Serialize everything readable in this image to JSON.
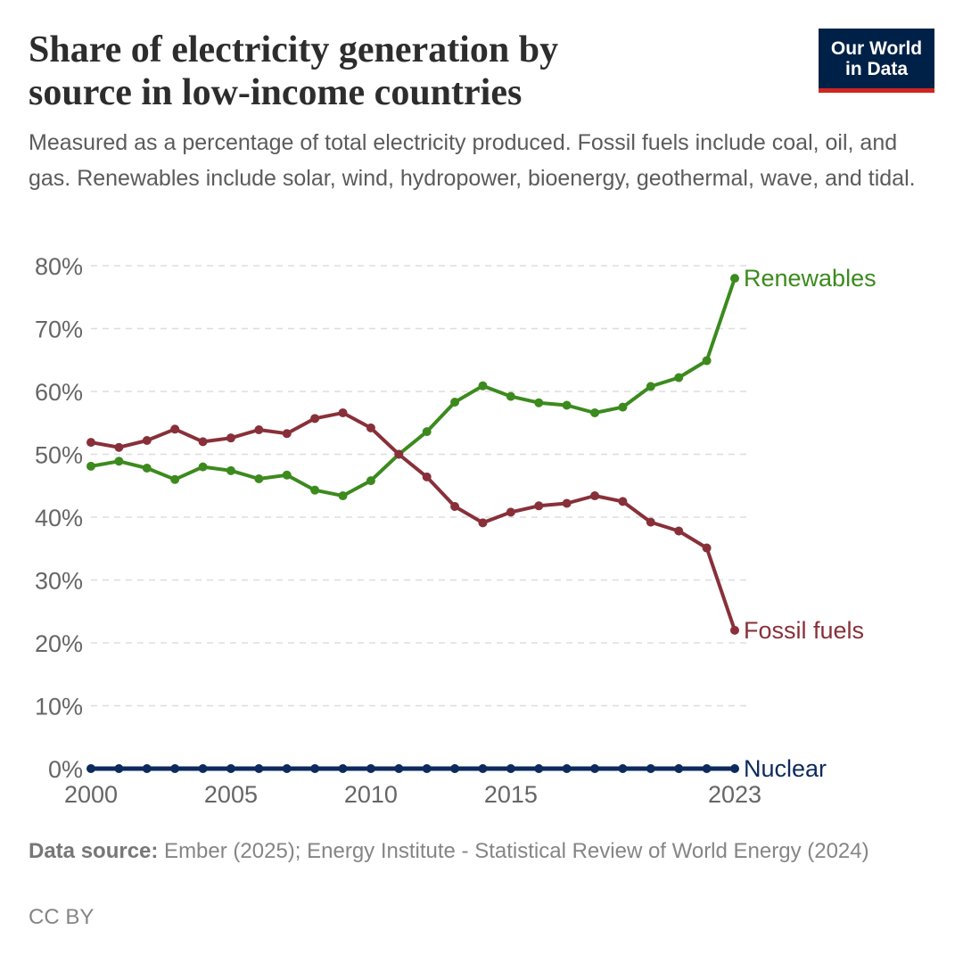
{
  "header": {
    "title": "Share of electricity generation by\nsource in low-income countries",
    "subtitle": "Measured as a percentage of total electricity produced. Fossil fuels include coal, oil, and gas. Renewables include solar, wind, hydropower, bioenergy, geothermal, wave, and tidal.",
    "logo_line1": "Our World",
    "logo_line2": "in Data"
  },
  "footer": {
    "source_label": "Data source:",
    "source_text": " Ember (2025); Energy Institute - Statistical Review of World Energy (2024)",
    "license": "CC BY"
  },
  "colors": {
    "renewables": "#3c8a1e",
    "fossil": "#883039",
    "nuclear": "#0d2a5c",
    "grid": "#dddddd",
    "axis_text": "#666666"
  },
  "chart_data": {
    "type": "line",
    "title": "Share of electricity generation by source in low-income countries",
    "xlabel": "",
    "ylabel": "",
    "ylim": [
      0,
      80
    ],
    "xlim": [
      2000,
      2023
    ],
    "y_ticks": [
      0,
      10,
      20,
      30,
      40,
      50,
      60,
      70,
      80
    ],
    "y_tick_labels": [
      "0%",
      "10%",
      "20%",
      "30%",
      "40%",
      "50%",
      "60%",
      "70%",
      "80%"
    ],
    "x_ticks": [
      2000,
      2005,
      2010,
      2015,
      2023
    ],
    "x_tick_labels": [
      "2000",
      "2005",
      "2010",
      "2015",
      "2023"
    ],
    "x": [
      2000,
      2001,
      2002,
      2003,
      2004,
      2005,
      2006,
      2007,
      2008,
      2009,
      2010,
      2011,
      2012,
      2013,
      2014,
      2015,
      2016,
      2017,
      2018,
      2019,
      2020,
      2021,
      2022,
      2023
    ],
    "grid": true,
    "series": [
      {
        "name": "Renewables",
        "key": "renewables",
        "values": [
          48.1,
          48.9,
          47.8,
          46.0,
          48.0,
          47.4,
          46.1,
          46.7,
          44.3,
          43.4,
          45.8,
          50.0,
          53.6,
          58.3,
          60.9,
          59.2,
          58.2,
          57.8,
          56.6,
          57.5,
          60.8,
          62.2,
          64.9,
          78.0
        ]
      },
      {
        "name": "Fossil fuels",
        "key": "fossil",
        "values": [
          51.9,
          51.1,
          52.2,
          54.0,
          52.0,
          52.6,
          53.9,
          53.3,
          55.7,
          56.6,
          54.2,
          50.0,
          46.4,
          41.7,
          39.1,
          40.8,
          41.8,
          42.2,
          43.4,
          42.5,
          39.2,
          37.8,
          35.1,
          22.0
        ]
      },
      {
        "name": "Nuclear",
        "key": "nuclear",
        "values": [
          0,
          0,
          0,
          0,
          0,
          0,
          0,
          0,
          0,
          0,
          0,
          0,
          0,
          0,
          0,
          0,
          0,
          0,
          0,
          0,
          0,
          0,
          0,
          0
        ]
      }
    ]
  }
}
